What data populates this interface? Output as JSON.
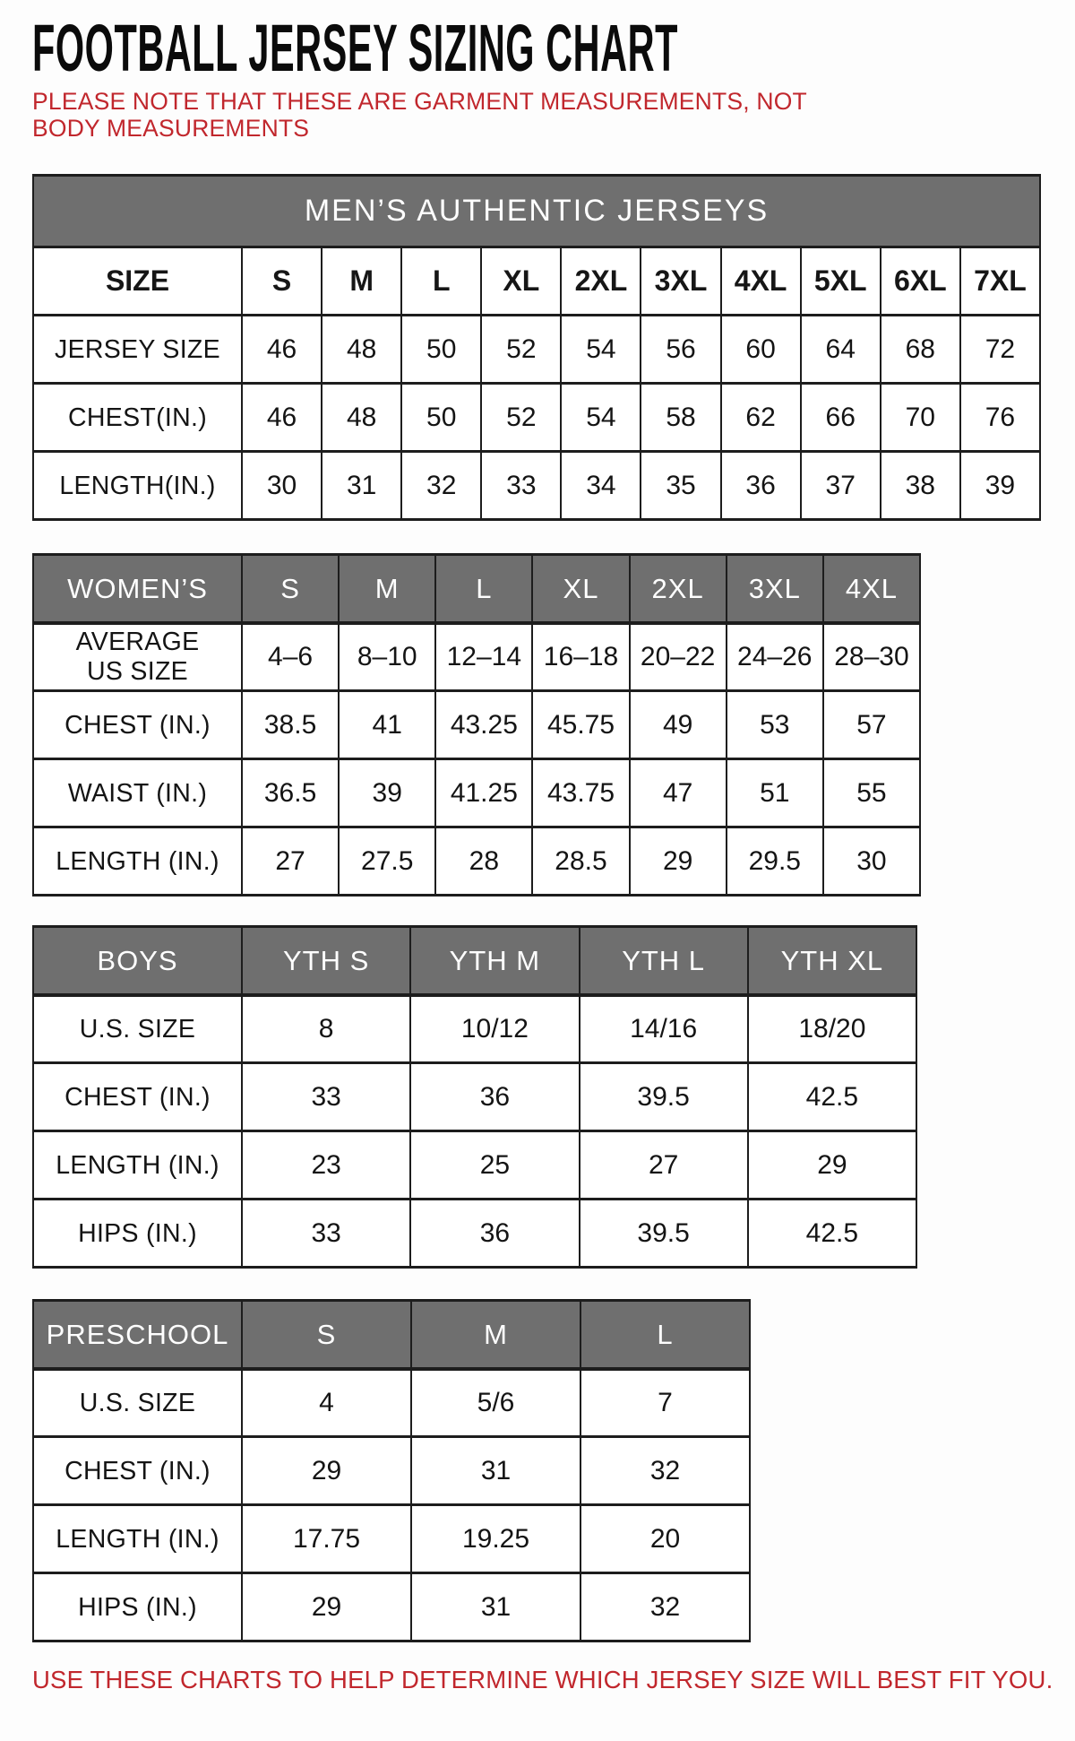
{
  "page": {
    "title": "FOOTBALL JERSEY SIZING CHART",
    "note": "PLEASE NOTE THAT THESE ARE GARMENT MEASUREMENTS, NOT BODY MEASUREMENTS",
    "footer": "USE THESE CHARTS TO HELP DETERMINE WHICH JERSEY SIZE WILL BEST FIT YOU."
  },
  "colors": {
    "header_gray": "#6f6f6f",
    "accent_red": "#c1272d",
    "border_dark": "#1d1d1d",
    "text_black": "#141414"
  },
  "tables": [
    {
      "key": "mens",
      "banner": "MEN’S AUTHENTIC JERSEYS",
      "corner": "SIZE",
      "columns": [
        "S",
        "M",
        "L",
        "XL",
        "2XL",
        "3XL",
        "4XL",
        "5XL",
        "6XL",
        "7XL"
      ],
      "rows": [
        {
          "label": "JERSEY SIZE",
          "values": [
            "46",
            "48",
            "50",
            "52",
            "54",
            "56",
            "60",
            "64",
            "68",
            "72"
          ]
        },
        {
          "label": "CHEST(IN.)",
          "values": [
            "46",
            "48",
            "50",
            "52",
            "54",
            "58",
            "62",
            "66",
            "70",
            "76"
          ]
        },
        {
          "label": "LENGTH(IN.)",
          "values": [
            "30",
            "31",
            "32",
            "33",
            "34",
            "35",
            "36",
            "37",
            "38",
            "39"
          ]
        }
      ]
    },
    {
      "key": "womens",
      "corner": "WOMEN’S",
      "columns": [
        "S",
        "M",
        "L",
        "XL",
        "2XL",
        "3XL",
        "4XL"
      ],
      "rows": [
        {
          "label": "AVERAGE\nUS SIZE",
          "values": [
            "4–6",
            "8–10",
            "12–14",
            "16–18",
            "20–22",
            "24–26",
            "28–30"
          ]
        },
        {
          "label": "CHEST (IN.)",
          "values": [
            "38.5",
            "41",
            "43.25",
            "45.75",
            "49",
            "53",
            "57"
          ]
        },
        {
          "label": "WAIST (IN.)",
          "values": [
            "36.5",
            "39",
            "41.25",
            "43.75",
            "47",
            "51",
            "55"
          ]
        },
        {
          "label": "LENGTH (IN.)",
          "values": [
            "27",
            "27.5",
            "28",
            "28.5",
            "29",
            "29.5",
            "30"
          ]
        }
      ]
    },
    {
      "key": "boys",
      "corner": "BOYS",
      "columns": [
        "YTH S",
        "YTH M",
        "YTH L",
        "YTH XL"
      ],
      "rows": [
        {
          "label": "U.S. SIZE",
          "values": [
            "8",
            "10/12",
            "14/16",
            "18/20"
          ]
        },
        {
          "label": "CHEST (IN.)",
          "values": [
            "33",
            "36",
            "39.5",
            "42.5"
          ]
        },
        {
          "label": "LENGTH (IN.)",
          "values": [
            "23",
            "25",
            "27",
            "29"
          ]
        },
        {
          "label": "HIPS (IN.)",
          "values": [
            "33",
            "36",
            "39.5",
            "42.5"
          ]
        }
      ]
    },
    {
      "key": "preschool",
      "corner": "PRESCHOOL",
      "columns": [
        "S",
        "M",
        "L"
      ],
      "rows": [
        {
          "label": "U.S. SIZE",
          "values": [
            "4",
            "5/6",
            "7"
          ]
        },
        {
          "label": "CHEST (IN.)",
          "values": [
            "29",
            "31",
            "32"
          ]
        },
        {
          "label": "LENGTH (IN.)",
          "values": [
            "17.75",
            "19.25",
            "20"
          ]
        },
        {
          "label": "HIPS (IN.)",
          "values": [
            "29",
            "31",
            "32"
          ]
        }
      ]
    }
  ]
}
